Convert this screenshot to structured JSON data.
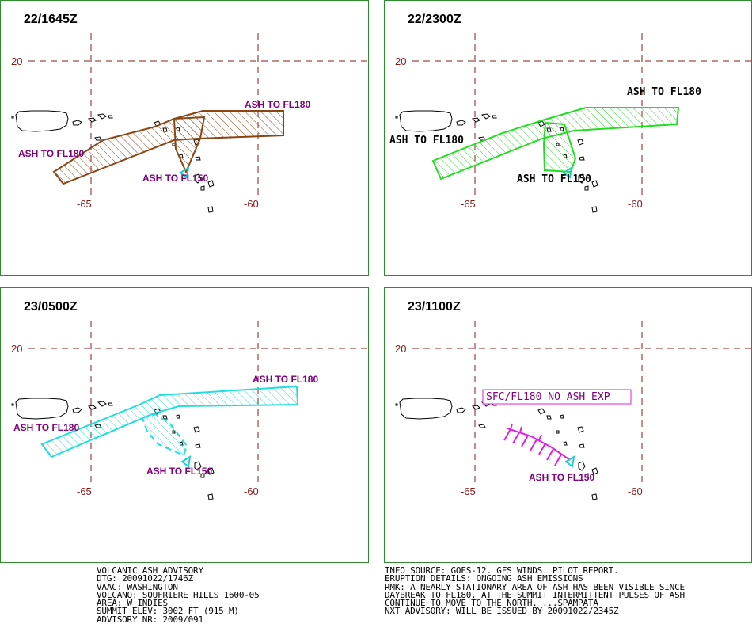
{
  "grid": {
    "lat_label": "20",
    "lon_left": "-65",
    "lon_right": "-60"
  },
  "colors": {
    "frame": "#2e8b2e",
    "grid": "#8b1a1a",
    "label_purple": "#800080",
    "ash_brown": "#8b4513",
    "ash_green": "#22dd22",
    "ash_cyan": "#22dddd",
    "ash_magenta": "#dd22dd",
    "volcano": "#22cccc"
  },
  "panels": [
    {
      "title": "22/1645Z",
      "labels": [
        "ASH TO FL180",
        "ASH TO FL180",
        "ASH TO FL150"
      ]
    },
    {
      "title": "22/2300Z",
      "labels": [
        "ASH TO FL180",
        "ASH TO FL180",
        "ASH TO FL150"
      ]
    },
    {
      "title": "23/0500Z",
      "labels": [
        "ASH TO FL180",
        "ASH TO FL180",
        "ASH TO FL150"
      ]
    },
    {
      "title": "23/1100Z",
      "labels": [
        "SFC/FL180 NO ASH EXP",
        "ASH TO FL150"
      ]
    }
  ],
  "advisory_left": [
    "VOLCANIC ASH ADVISORY",
    "DTG: 20091022/1746Z",
    "VAAC: WASHINGTON",
    "VOLCANO: SOUFRIERE HILLS 1600-05",
    "AREA: W_INDIES",
    "SUMMIT ELEV: 3002 FT (915 M)",
    "ADVISORY NR: 2009/091"
  ],
  "advisory_right": [
    "INFO SOURCE: GOES-12. GFS WINDS. PILOT REPORT.",
    "ERUPTION DETAILS: ONGOING ASH EMISSIONS",
    "RMK: A NEARLY STATIONARY AREA OF ASH HAS BEEN VISIBLE SINCE",
    "DAYBREAK TO FL180. AT THE SUMMIT INTERMITTENT PULSES OF ASH",
    "CONTINUE TO MOVE TO THE NORTH. ...SPAMPATA",
    "NXT ADVISORY: WILL BE ISSUED BY 20091022/2345Z"
  ]
}
